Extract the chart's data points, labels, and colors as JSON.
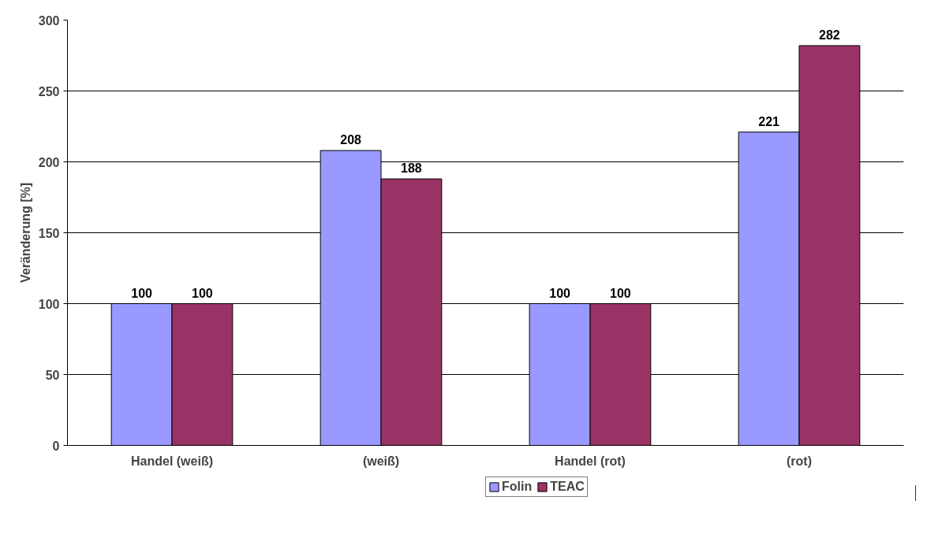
{
  "chart_data": {
    "type": "bar",
    "ylabel": "Veränderung [%]",
    "categories": [
      "Handel (weiß)",
      "(weiß)",
      "Handel (rot)",
      "(rot)"
    ],
    "series": [
      {
        "name": "Folin",
        "color": "#9999ff",
        "values": [
          100,
          208,
          100,
          221
        ]
      },
      {
        "name": "TEAC",
        "color": "#993366",
        "values": [
          100,
          188,
          100,
          282
        ]
      }
    ],
    "ylim": [
      0,
      300
    ],
    "yticks": [
      0,
      50,
      100,
      150,
      200,
      250,
      300
    ],
    "grid": "y",
    "legend": "bottom",
    "data_labels": true
  }
}
